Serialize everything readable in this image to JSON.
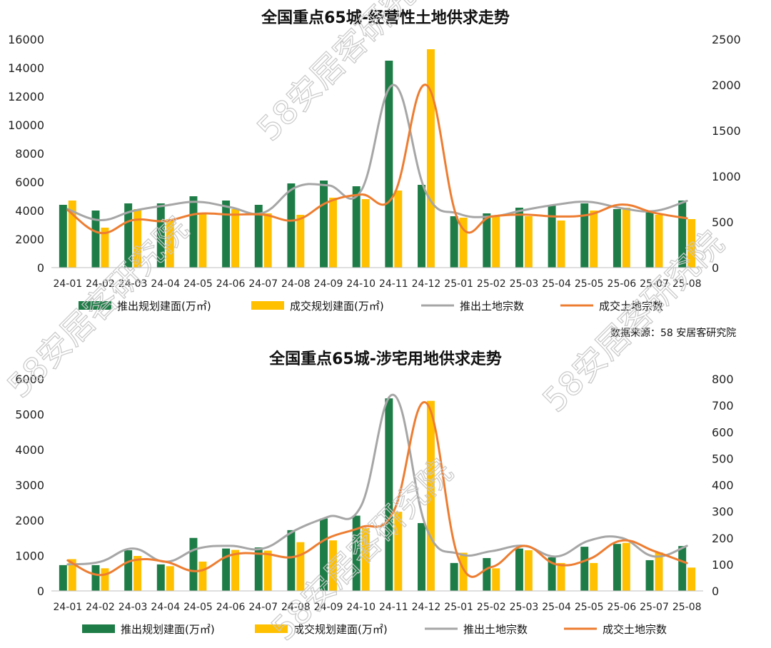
{
  "source_note": "数据来源：58 安居客研究院",
  "watermark_text": "58安居客研究院",
  "colors": {
    "bar_supply": "#1e7d47",
    "bar_deal": "#ffc000",
    "line_supply": "#a6a6a6",
    "line_deal": "#ed7d31"
  },
  "chart_data": [
    {
      "type": "bar",
      "title": "全国重点65城-经营性土地供求走势",
      "categories": [
        "24-01",
        "24-02",
        "24-03",
        "24-04",
        "24-05",
        "24-06",
        "24-07",
        "24-08",
        "24-09",
        "24-10",
        "24-11",
        "24-12",
        "25-01",
        "25-02",
        "25-03",
        "25-04",
        "25-05",
        "25-06",
        "25-07",
        "25-08"
      ],
      "ylim": [
        0,
        16000
      ],
      "yticks": [
        "0",
        "2000",
        "4000",
        "6000",
        "8000",
        "10000",
        "12000",
        "14000",
        "16000"
      ],
      "y2lim": [
        0,
        2500
      ],
      "y2ticks": [
        "0",
        "500",
        "1000",
        "1500",
        "2000",
        "2500"
      ],
      "legend_position": "bottom",
      "grid": false,
      "series": [
        {
          "name": "推出规划建面(万㎡)",
          "kind": "bar",
          "axis": "left",
          "values": [
            4400,
            4000,
            4500,
            4500,
            5000,
            4700,
            4400,
            5900,
            6100,
            5700,
            14500,
            5800,
            3600,
            3800,
            4200,
            4400,
            4500,
            4100,
            4000,
            4700
          ]
        },
        {
          "name": "成交规划建面(万㎡)",
          "kind": "bar",
          "axis": "left",
          "values": [
            4700,
            2800,
            4100,
            3400,
            3800,
            4100,
            3800,
            3700,
            4900,
            4800,
            5400,
            15300,
            3500,
            3600,
            3600,
            3300,
            4000,
            4200,
            3700,
            3400
          ]
        },
        {
          "name": "推出土地宗数",
          "kind": "line",
          "axis": "right",
          "values": [
            640,
            520,
            620,
            680,
            720,
            660,
            600,
            880,
            900,
            840,
            2000,
            820,
            590,
            560,
            630,
            690,
            720,
            650,
            620,
            730
          ]
        },
        {
          "name": "成交土地宗数",
          "kind": "line",
          "axis": "right",
          "values": [
            630,
            380,
            520,
            510,
            590,
            580,
            580,
            520,
            720,
            800,
            790,
            2000,
            500,
            560,
            580,
            560,
            580,
            690,
            600,
            540
          ]
        }
      ]
    },
    {
      "type": "bar",
      "title": "全国重点65城-涉宅用地供求走势",
      "categories": [
        "24-01",
        "24-02",
        "24-03",
        "24-04",
        "24-05",
        "24-06",
        "24-07",
        "24-08",
        "24-09",
        "24-10",
        "24-11",
        "24-12",
        "25-01",
        "25-02",
        "25-03",
        "25-04",
        "25-05",
        "25-06",
        "25-07",
        "25-08"
      ],
      "ylim": [
        0,
        6000
      ],
      "yticks": [
        "0",
        "1000",
        "2000",
        "3000",
        "4000",
        "5000",
        "6000"
      ],
      "y2lim": [
        0,
        800
      ],
      "y2ticks": [
        "0",
        "100",
        "200",
        "300",
        "400",
        "500",
        "600",
        "700",
        "800"
      ],
      "legend_position": "bottom",
      "grid": false,
      "series": [
        {
          "name": "推出规划建面(万㎡)",
          "kind": "bar",
          "axis": "left",
          "values": [
            730,
            730,
            1150,
            750,
            1500,
            1200,
            1230,
            1720,
            2050,
            2130,
            5450,
            1920,
            790,
            930,
            1200,
            950,
            1250,
            1330,
            870,
            1270
          ]
        },
        {
          "name": "成交规划建面(万㎡)",
          "kind": "bar",
          "axis": "left",
          "values": [
            900,
            640,
            990,
            700,
            830,
            1160,
            1140,
            1380,
            1430,
            1780,
            2240,
            5380,
            1080,
            640,
            1150,
            790,
            790,
            1360,
            1090,
            660
          ]
        },
        {
          "name": "推出土地宗数",
          "kind": "line",
          "axis": "right",
          "values": [
            100,
            110,
            160,
            110,
            160,
            170,
            160,
            230,
            280,
            320,
            740,
            240,
            140,
            150,
            170,
            130,
            190,
            200,
            130,
            170
          ]
        },
        {
          "name": "成交土地宗数",
          "kind": "line",
          "axis": "right",
          "values": [
            115,
            60,
            115,
            110,
            75,
            135,
            140,
            130,
            200,
            240,
            300,
            710,
            120,
            90,
            170,
            100,
            120,
            190,
            150,
            105
          ]
        }
      ]
    }
  ]
}
